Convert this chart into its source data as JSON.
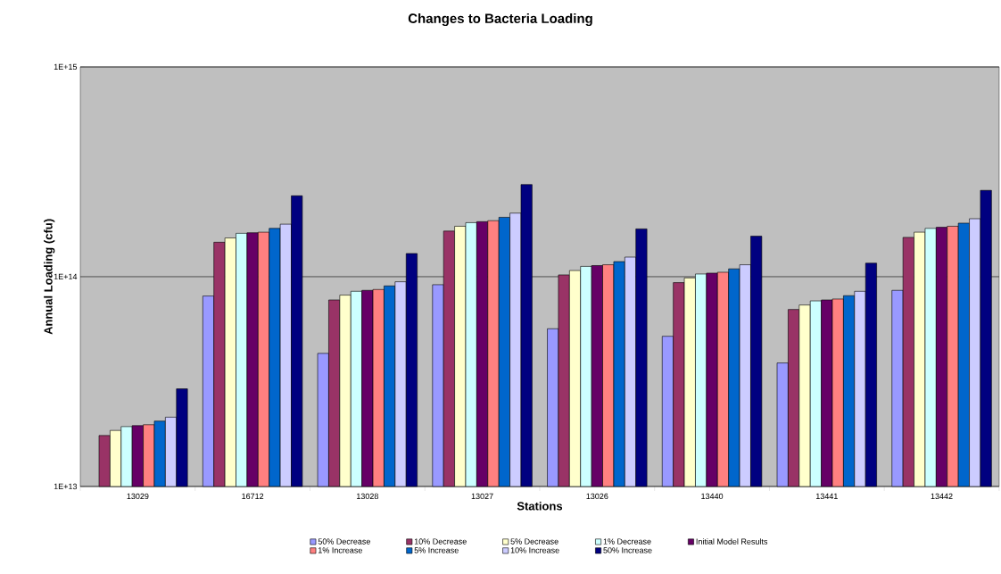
{
  "chart_data": {
    "type": "bar",
    "title": "Changes to Bacteria Loading",
    "xlabel": "Stations",
    "ylabel": "Annual Loading (cfu)",
    "categories": [
      "13029",
      "16712",
      "13028",
      "13027",
      "13026",
      "13440",
      "13441",
      "13442"
    ],
    "series": [
      {
        "name": "50% Decrease",
        "color": "#9999ff",
        "values": [
          null,
          80900000000000.0,
          43100000000000.0,
          91600000000000.0,
          56500000000000.0,
          52000000000000.0,
          38800000000000.0,
          86100000000000.0
        ]
      },
      {
        "name": "10% Decrease",
        "color": "#993366",
        "values": [
          17500000000000.0,
          146000000000000.0,
          77500000000000.0,
          165000000000000.0,
          102000000000000.0,
          93700000000000.0,
          69800000000000.0,
          154000000000000.0
        ]
      },
      {
        "name": "5% Decrease",
        "color": "#ffffcc",
        "values": [
          18500000000000.0,
          153000000000000.0,
          81700000000000.0,
          174000000000000.0,
          107000000000000.0,
          98700000000000.0,
          73300000000000.0,
          163000000000000.0
        ]
      },
      {
        "name": "1% Decrease",
        "color": "#ccffff",
        "values": [
          19300000000000.0,
          161000000000000.0,
          85200000000000.0,
          181000000000000.0,
          112000000000000.0,
          103000000000000.0,
          76700000000000.0,
          170000000000000.0
        ]
      },
      {
        "name": "Initial Model Results",
        "color": "#660066",
        "values": [
          19500000000000.0,
          162000000000000.0,
          86100000000000.0,
          183000000000000.0,
          113000000000000.0,
          104000000000000.0,
          77500000000000.0,
          172000000000000.0
        ]
      },
      {
        "name": "1% Increase",
        "color": "#ff8080",
        "values": [
          19700000000000.0,
          163000000000000.0,
          86900000000000.0,
          185000000000000.0,
          114000000000000.0,
          105000000000000.0,
          78300000000000.0,
          174000000000000.0
        ]
      },
      {
        "name": "5% Increase",
        "color": "#0066cc",
        "values": [
          20500000000000.0,
          170000000000000.0,
          90400000000000.0,
          192000000000000.0,
          118000000000000.0,
          109000000000000.0,
          81200000000000.0,
          180000000000000.0
        ]
      },
      {
        "name": "10% Increase",
        "color": "#ccccff",
        "values": [
          21400000000000.0,
          178000000000000.0,
          94600000000000.0,
          201000000000000.0,
          124000000000000.0,
          114000000000000.0,
          85200000000000.0,
          189000000000000.0
        ]
      },
      {
        "name": "50% Increase",
        "color": "#000080",
        "values": [
          29200000000000.0,
          243000000000000.0,
          129000000000000.0,
          275000000000000.0,
          169000000000000.0,
          156000000000000.0,
          116000000000000.0,
          258000000000000.0
        ]
      }
    ],
    "log": true,
    "ylim": [
      10000000000000.0,
      1000000000000000.0
    ],
    "yticks": [
      {
        "value": 10000000000000.0,
        "label": "1E+13"
      },
      {
        "value": 100000000000000.0,
        "label": "1E+14"
      },
      {
        "value": 1000000000000000.0,
        "label": "1E+15"
      }
    ],
    "grid": "y",
    "legend": "bottom"
  }
}
